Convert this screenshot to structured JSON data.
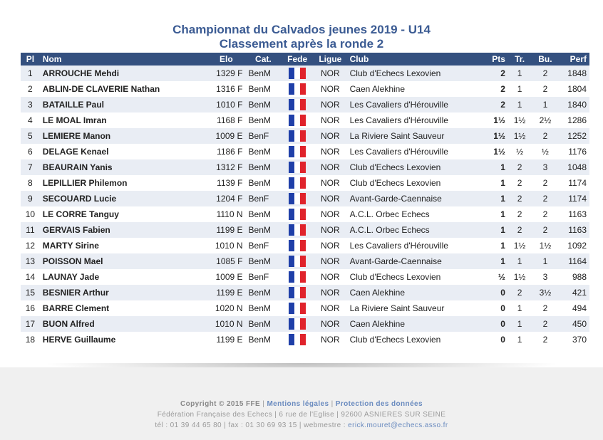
{
  "title": "Championnat du Calvados jeunes 2019 - U14",
  "subtitle": "Classement après la ronde 2",
  "headers": {
    "pl": "Pl",
    "nom": "Nom",
    "elo": "Elo",
    "cat": "Cat.",
    "fede": "Fede",
    "ligue": "Ligue",
    "club": "Club",
    "pts": "Pts",
    "tr": "Tr.",
    "bu": "Bu.",
    "perf": "Perf"
  },
  "flag_colors": [
    "#1f3fa8",
    "#ffffff",
    "#e0232b"
  ],
  "flag_icon": "france-flag-icon",
  "rows": [
    {
      "pl": "1",
      "nom": "ARROUCHE Mehdi",
      "elo": "1329 F",
      "cat": "BenM",
      "ligue": "NOR",
      "club": "Club d'Echecs Lexovien",
      "pts": "2",
      "tr": "1",
      "bu": "2",
      "perf": "1848"
    },
    {
      "pl": "2",
      "nom": "ABLIN-DE CLAVERIE Nathan",
      "elo": "1316 F",
      "cat": "BenM",
      "ligue": "NOR",
      "club": "Caen Alekhine",
      "pts": "2",
      "tr": "1",
      "bu": "2",
      "perf": "1804"
    },
    {
      "pl": "3",
      "nom": "BATAILLE Paul",
      "elo": "1010 F",
      "cat": "BenM",
      "ligue": "NOR",
      "club": "Les Cavaliers d'Hérouville",
      "pts": "2",
      "tr": "1",
      "bu": "1",
      "perf": "1840"
    },
    {
      "pl": "4",
      "nom": "LE MOAL Imran",
      "elo": "1168 F",
      "cat": "BenM",
      "ligue": "NOR",
      "club": "Les Cavaliers d'Hérouville",
      "pts": "1½",
      "tr": "1½",
      "bu": "2½",
      "perf": "1286"
    },
    {
      "pl": "5",
      "nom": "LEMIERE Manon",
      "elo": "1009 E",
      "cat": "BenF",
      "ligue": "NOR",
      "club": "La Riviere Saint Sauveur",
      "pts": "1½",
      "tr": "1½",
      "bu": "2",
      "perf": "1252"
    },
    {
      "pl": "6",
      "nom": "DELAGE Kenael",
      "elo": "1186 F",
      "cat": "BenM",
      "ligue": "NOR",
      "club": "Les Cavaliers d'Hérouville",
      "pts": "1½",
      "tr": "½",
      "bu": "½",
      "perf": "1176"
    },
    {
      "pl": "7",
      "nom": "BEAURAIN Yanis",
      "elo": "1312 F",
      "cat": "BenM",
      "ligue": "NOR",
      "club": "Club d'Echecs Lexovien",
      "pts": "1",
      "tr": "2",
      "bu": "3",
      "perf": "1048"
    },
    {
      "pl": "8",
      "nom": "LEPILLIER Philemon",
      "elo": "1139 F",
      "cat": "BenM",
      "ligue": "NOR",
      "club": "Club d'Echecs Lexovien",
      "pts": "1",
      "tr": "2",
      "bu": "2",
      "perf": "1174"
    },
    {
      "pl": "9",
      "nom": "SECOUARD Lucie",
      "elo": "1204 F",
      "cat": "BenF",
      "ligue": "NOR",
      "club": "Avant-Garde-Caennaise",
      "pts": "1",
      "tr": "2",
      "bu": "2",
      "perf": "1174"
    },
    {
      "pl": "10",
      "nom": "LE CORRE Tanguy",
      "elo": "1110 N",
      "cat": "BenM",
      "ligue": "NOR",
      "club": "A.C.L. Orbec Echecs",
      "pts": "1",
      "tr": "2",
      "bu": "2",
      "perf": "1163"
    },
    {
      "pl": "11",
      "nom": "GERVAIS Fabien",
      "elo": "1199 E",
      "cat": "BenM",
      "ligue": "NOR",
      "club": "A.C.L. Orbec Echecs",
      "pts": "1",
      "tr": "2",
      "bu": "2",
      "perf": "1163"
    },
    {
      "pl": "12",
      "nom": "MARTY Sirine",
      "elo": "1010 N",
      "cat": "BenF",
      "ligue": "NOR",
      "club": "Les Cavaliers d'Hérouville",
      "pts": "1",
      "tr": "1½",
      "bu": "1½",
      "perf": "1092"
    },
    {
      "pl": "13",
      "nom": "POISSON Mael",
      "elo": "1085 F",
      "cat": "BenM",
      "ligue": "NOR",
      "club": "Avant-Garde-Caennaise",
      "pts": "1",
      "tr": "1",
      "bu": "1",
      "perf": "1164"
    },
    {
      "pl": "14",
      "nom": "LAUNAY Jade",
      "elo": "1009 E",
      "cat": "BenF",
      "ligue": "NOR",
      "club": "Club d'Echecs Lexovien",
      "pts": "½",
      "tr": "1½",
      "bu": "3",
      "perf": "988"
    },
    {
      "pl": "15",
      "nom": "BESNIER Arthur",
      "elo": "1199 E",
      "cat": "BenM",
      "ligue": "NOR",
      "club": "Caen Alekhine",
      "pts": "0",
      "tr": "2",
      "bu": "3½",
      "perf": "421"
    },
    {
      "pl": "16",
      "nom": "BARRE Clement",
      "elo": "1020 N",
      "cat": "BenM",
      "ligue": "NOR",
      "club": "La Riviere Saint Sauveur",
      "pts": "0",
      "tr": "1",
      "bu": "2",
      "perf": "494"
    },
    {
      "pl": "17",
      "nom": "BUON Alfred",
      "elo": "1010 N",
      "cat": "BenM",
      "ligue": "NOR",
      "club": "Caen Alekhine",
      "pts": "0",
      "tr": "1",
      "bu": "2",
      "perf": "450"
    },
    {
      "pl": "18",
      "nom": "HERVE Guillaume",
      "elo": "1199 E",
      "cat": "BenM",
      "ligue": "NOR",
      "club": "Club d'Echecs Lexovien",
      "pts": "0",
      "tr": "1",
      "bu": "2",
      "perf": "370"
    }
  ],
  "footer": {
    "copyright": "Copyright © 2015 FFE",
    "sep1": " | ",
    "mentions": "Mentions légales",
    "sep2": " | ",
    "protection": "Protection des données",
    "line2": "Fédération Française des Echecs | 6 rue de l'Eglise | 92600 ASNIERES SUR SEINE",
    "line3_prefix": "tél : 01 39 44 65 80 | fax : 01 30 69 93 15 | webmestre : ",
    "email": "erick.mouret@echecs.asso.fr"
  }
}
